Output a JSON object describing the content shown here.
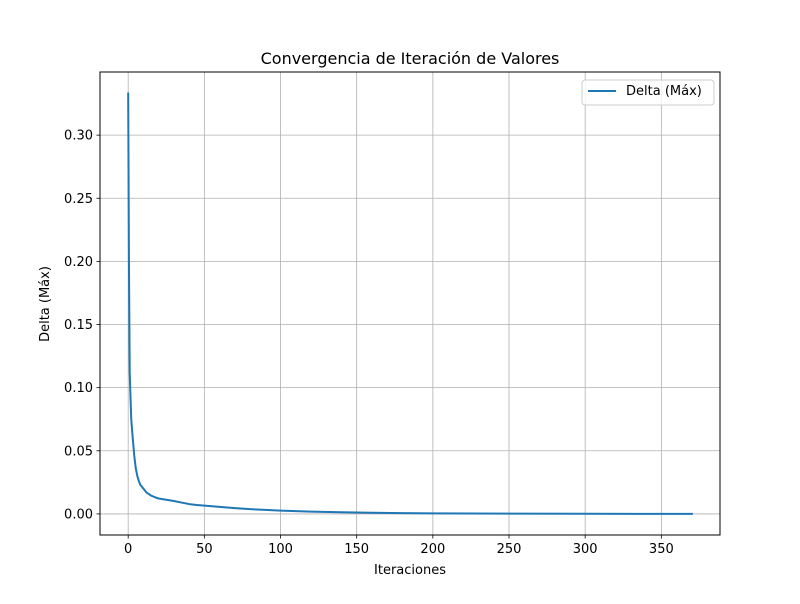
{
  "chart_data": {
    "type": "line",
    "title": "Convergencia de Iteración de Valores",
    "xlabel": "Iteraciones",
    "ylabel": "Delta (Máx)",
    "xlim": [
      -18.5,
      388.5
    ],
    "ylim": [
      -0.0167,
      0.35
    ],
    "xticks": [
      0,
      50,
      100,
      150,
      200,
      250,
      300,
      350
    ],
    "yticks": [
      0.0,
      0.05,
      0.1,
      0.15,
      0.2,
      0.25,
      0.3
    ],
    "ytick_labels": [
      "0.00",
      "0.05",
      "0.10",
      "0.15",
      "0.20",
      "0.25",
      "0.30"
    ],
    "grid": true,
    "legend_position": "upper right",
    "series": [
      {
        "name": "Delta (Máx)",
        "color": "#1f77b4",
        "x": [
          0,
          0.5,
          1,
          2,
          3,
          4,
          5,
          6,
          7,
          8,
          10,
          12,
          15,
          18,
          20,
          25,
          30,
          35,
          40,
          45,
          50,
          60,
          70,
          80,
          90,
          100,
          120,
          140,
          160,
          180,
          200,
          250,
          300,
          350,
          370
        ],
        "y": [
          0.333,
          0.2,
          0.112,
          0.075,
          0.06,
          0.046,
          0.036,
          0.03,
          0.026,
          0.023,
          0.02,
          0.017,
          0.0145,
          0.013,
          0.0122,
          0.0112,
          0.0102,
          0.009,
          0.0078,
          0.0071,
          0.0066,
          0.0056,
          0.0046,
          0.0038,
          0.0032,
          0.0026,
          0.0018,
          0.0013,
          0.0009,
          0.0006,
          0.0004,
          0.0002,
          0.0001,
          4e-05,
          3e-05
        ]
      }
    ]
  }
}
